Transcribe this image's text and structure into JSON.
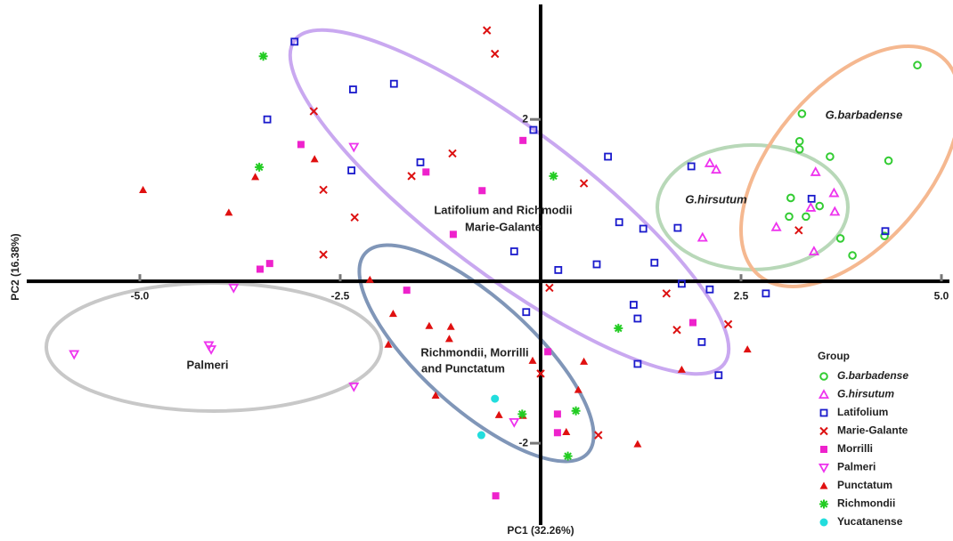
{
  "chart_data": {
    "type": "scatter",
    "x_label": "PC1 (32.26%)",
    "y_label": "PC2 (16.38%)",
    "xlim": [
      -6.3,
      5.1
    ],
    "ylim": [
      -3.01,
      3.42
    ],
    "xticks": [
      {
        "value": -5,
        "label": "-5.0"
      },
      {
        "value": -2.5,
        "label": "-2.5"
      },
      {
        "value": 2.5,
        "label": "2.5"
      },
      {
        "value": 5,
        "label": "5.0"
      }
    ],
    "yticks": [
      2,
      -2
    ],
    "legend_title": "Group",
    "annotations": [
      "Latifolium and Richmodii",
      "Marie-Galante",
      "Richmondii, Morrilli",
      "and  Punctatum",
      "Palmeri",
      "G.hirsutum",
      "G.barbadense"
    ],
    "series": [
      {
        "name": "G.barbadense",
        "color": "#33cc33",
        "marker": "circle-open",
        "style": "italic",
        "values": [
          [
            4.7,
            2.67
          ],
          [
            3.26,
            2.07
          ],
          [
            3.23,
            1.73
          ],
          [
            3.23,
            1.63
          ],
          [
            3.61,
            1.54
          ],
          [
            4.34,
            1.49
          ],
          [
            3.12,
            1.03
          ],
          [
            3.48,
            0.93
          ],
          [
            3.1,
            0.8
          ],
          [
            3.31,
            0.8
          ],
          [
            3.74,
            0.53
          ],
          [
            4.29,
            0.56
          ],
          [
            3.89,
            0.32
          ]
        ]
      },
      {
        "name": "G.hirsutum",
        "color": "#ee33ee",
        "marker": "triangle-open",
        "style": "italic",
        "values": [
          [
            2.11,
            1.46
          ],
          [
            2.19,
            1.38
          ],
          [
            3.43,
            1.35
          ],
          [
            3.66,
            1.09
          ],
          [
            3.37,
            0.91
          ],
          [
            3.67,
            0.86
          ],
          [
            2.94,
            0.67
          ],
          [
            2.02,
            0.54
          ],
          [
            3.41,
            0.37
          ]
        ]
      },
      {
        "name": "Latifolium",
        "color": "#1a1acc",
        "marker": "square-open",
        "values": [
          [
            -3.07,
            2.96
          ],
          [
            -3.41,
            2.0
          ],
          [
            -2.36,
            1.37
          ],
          [
            0.84,
            1.54
          ],
          [
            1.88,
            1.42
          ],
          [
            1.71,
            0.66
          ],
          [
            4.3,
            0.62
          ],
          [
            2.81,
            -0.15
          ],
          [
            2.11,
            -0.1
          ],
          [
            -0.18,
            -0.38
          ],
          [
            1.21,
            -1.02
          ],
          [
            2.22,
            -1.16
          ],
          [
            -2.34,
            2.37
          ],
          [
            -1.83,
            2.44
          ],
          [
            -0.09,
            1.87
          ],
          [
            -1.5,
            1.47
          ],
          [
            0.98,
            0.73
          ],
          [
            1.28,
            0.65
          ],
          [
            0.7,
            0.21
          ],
          [
            0.22,
            0.14
          ],
          [
            -0.33,
            0.37
          ],
          [
            1.42,
            0.23
          ],
          [
            1.76,
            -0.03
          ],
          [
            1.16,
            -0.29
          ],
          [
            1.21,
            -0.46
          ],
          [
            2.01,
            -0.75
          ],
          [
            3.38,
            1.02
          ]
        ]
      },
      {
        "name": "Marie-Galante",
        "color": "#dd1111",
        "marker": "cross",
        "values": [
          [
            -0.67,
            3.1
          ],
          [
            -0.57,
            2.81
          ],
          [
            -2.83,
            2.1
          ],
          [
            -1.1,
            1.58
          ],
          [
            -1.61,
            1.3
          ],
          [
            0.54,
            1.21
          ],
          [
            -2.71,
            1.13
          ],
          [
            -2.32,
            0.79
          ],
          [
            -2.71,
            0.33
          ],
          [
            0.11,
            -0.08
          ],
          [
            1.57,
            -0.15
          ],
          [
            1.7,
            -0.6
          ],
          [
            2.34,
            -0.53
          ],
          [
            0.0,
            -1.14
          ],
          [
            0.72,
            -1.9
          ],
          [
            3.22,
            0.63
          ]
        ]
      },
      {
        "name": "Morrilli",
        "color": "#ee22cc",
        "marker": "square",
        "values": [
          [
            -2.99,
            1.69
          ],
          [
            -0.22,
            1.74
          ],
          [
            -1.43,
            1.35
          ],
          [
            -0.73,
            1.12
          ],
          [
            -1.09,
            0.58
          ],
          [
            -3.5,
            0.15
          ],
          [
            -3.38,
            0.22
          ],
          [
            -1.67,
            -0.11
          ],
          [
            1.9,
            -0.51
          ],
          [
            0.09,
            -0.87
          ],
          [
            0.21,
            -1.64
          ],
          [
            0.21,
            -1.87
          ],
          [
            -0.56,
            -2.65
          ]
        ]
      },
      {
        "name": "Palmeri",
        "color": "#ee33ee",
        "marker": "triangle-down-open",
        "values": [
          [
            -2.33,
            1.66
          ],
          [
            -3.83,
            -0.08
          ],
          [
            -5.82,
            -0.9
          ],
          [
            -4.14,
            -0.79
          ],
          [
            -4.11,
            -0.84
          ],
          [
            -2.33,
            -1.3
          ],
          [
            -0.33,
            -1.74
          ]
        ]
      },
      {
        "name": "Punctatum",
        "color": "#e01010",
        "marker": "triangle",
        "values": [
          [
            -4.96,
            1.13
          ],
          [
            -3.89,
            0.85
          ],
          [
            -3.56,
            1.29
          ],
          [
            -2.82,
            1.51
          ],
          [
            -2.13,
            0.02
          ],
          [
            -1.84,
            -0.4
          ],
          [
            -1.39,
            -0.55
          ],
          [
            -1.12,
            -0.56
          ],
          [
            -1.14,
            -0.71
          ],
          [
            -1.9,
            -0.78
          ],
          [
            -0.1,
            -0.98
          ],
          [
            0.54,
            -0.99
          ],
          [
            0.47,
            -1.34
          ],
          [
            -1.31,
            -1.41
          ],
          [
            -0.52,
            -1.65
          ],
          [
            -0.22,
            -1.66
          ],
          [
            0.32,
            -1.86
          ],
          [
            1.21,
            -2.01
          ],
          [
            1.76,
            -1.09
          ],
          [
            2.58,
            -0.84
          ]
        ]
      },
      {
        "name": "Richmondii",
        "color": "#22cc22",
        "marker": "asterisk",
        "values": [
          [
            -3.46,
            2.78
          ],
          [
            -3.51,
            1.41
          ],
          [
            0.16,
            1.3
          ],
          [
            0.97,
            -0.58
          ],
          [
            -0.23,
            -1.64
          ],
          [
            0.44,
            -1.6
          ],
          [
            0.34,
            -2.16
          ]
        ]
      },
      {
        "name": "Yucatanense",
        "color": "#22dddd",
        "marker": "circle",
        "values": [
          [
            -0.57,
            -1.45
          ],
          [
            -0.74,
            -1.9
          ]
        ]
      }
    ]
  }
}
